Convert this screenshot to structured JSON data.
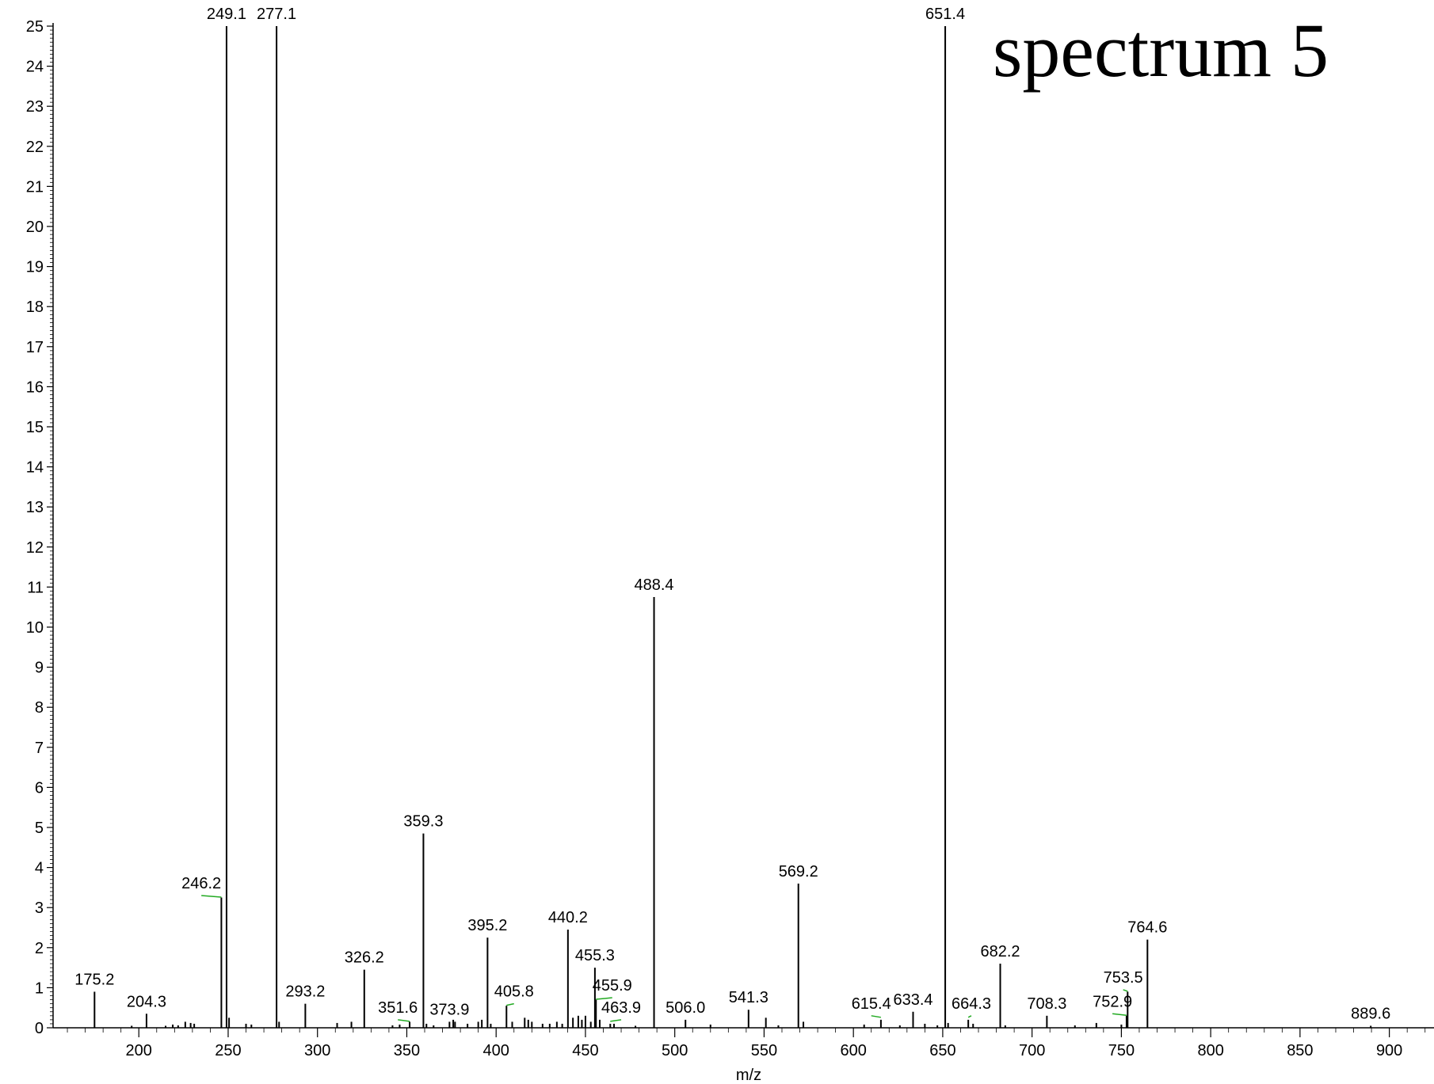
{
  "chart_data": {
    "type": "bar",
    "title": "spectrum 5",
    "xlabel": "m/z",
    "ylabel": "",
    "xlim": [
      152,
      925
    ],
    "ylim": [
      0,
      25
    ],
    "x_ticks": [
      200,
      250,
      300,
      350,
      400,
      450,
      500,
      550,
      600,
      650,
      700,
      750,
      800,
      850,
      900
    ],
    "y_ticks": [
      0,
      1,
      2,
      3,
      4,
      5,
      6,
      7,
      8,
      9,
      10,
      11,
      12,
      13,
      14,
      15,
      16,
      17,
      18,
      19,
      20,
      21,
      22,
      23,
      24,
      25
    ],
    "grid": false,
    "labeled_peaks": [
      {
        "mz": 175.2,
        "intensity": 0.9,
        "label": "175.2"
      },
      {
        "mz": 204.3,
        "intensity": 0.35,
        "label": "204.3"
      },
      {
        "mz": 246.2,
        "intensity": 3.25,
        "label": "246.2"
      },
      {
        "mz": 249.1,
        "intensity": 25.0,
        "label": "249.1"
      },
      {
        "mz": 277.1,
        "intensity": 25.0,
        "label": "277.1"
      },
      {
        "mz": 293.2,
        "intensity": 0.6,
        "label": "293.2"
      },
      {
        "mz": 326.2,
        "intensity": 1.45,
        "label": "326.2"
      },
      {
        "mz": 351.6,
        "intensity": 0.15,
        "label": "351.6"
      },
      {
        "mz": 359.3,
        "intensity": 4.85,
        "label": "359.3"
      },
      {
        "mz": 373.9,
        "intensity": 0.15,
        "label": "373.9"
      },
      {
        "mz": 395.2,
        "intensity": 2.25,
        "label": "395.2"
      },
      {
        "mz": 405.8,
        "intensity": 0.55,
        "label": "405.8"
      },
      {
        "mz": 440.2,
        "intensity": 2.45,
        "label": "440.2"
      },
      {
        "mz": 455.3,
        "intensity": 1.5,
        "label": "455.3"
      },
      {
        "mz": 455.9,
        "intensity": 0.7,
        "label": "455.9"
      },
      {
        "mz": 463.9,
        "intensity": 0.1,
        "label": "463.9"
      },
      {
        "mz": 488.4,
        "intensity": 10.75,
        "label": "488.4"
      },
      {
        "mz": 506.0,
        "intensity": 0.2,
        "label": "506.0"
      },
      {
        "mz": 541.3,
        "intensity": 0.45,
        "label": "541.3"
      },
      {
        "mz": 569.2,
        "intensity": 3.6,
        "label": "569.2"
      },
      {
        "mz": 615.4,
        "intensity": 0.2,
        "label": "615.4"
      },
      {
        "mz": 633.4,
        "intensity": 0.4,
        "label": "633.4"
      },
      {
        "mz": 651.4,
        "intensity": 25.0,
        "label": "651.4"
      },
      {
        "mz": 664.3,
        "intensity": 0.2,
        "label": "664.3"
      },
      {
        "mz": 682.2,
        "intensity": 1.6,
        "label": "682.2"
      },
      {
        "mz": 708.3,
        "intensity": 0.3,
        "label": "708.3"
      },
      {
        "mz": 752.9,
        "intensity": 0.3,
        "label": "752.9"
      },
      {
        "mz": 753.5,
        "intensity": 0.9,
        "label": "753.5"
      },
      {
        "mz": 764.6,
        "intensity": 2.2,
        "label": "764.6"
      },
      {
        "mz": 889.6,
        "intensity": 0.05,
        "label": "889.6"
      }
    ],
    "minor_peaks": [
      {
        "mz": 196,
        "intensity": 0.05
      },
      {
        "mz": 215,
        "intensity": 0.05
      },
      {
        "mz": 219,
        "intensity": 0.08
      },
      {
        "mz": 222,
        "intensity": 0.06
      },
      {
        "mz": 226,
        "intensity": 0.15
      },
      {
        "mz": 229,
        "intensity": 0.12
      },
      {
        "mz": 231,
        "intensity": 0.1
      },
      {
        "mz": 250.5,
        "intensity": 0.25
      },
      {
        "mz": 260,
        "intensity": 0.1
      },
      {
        "mz": 263,
        "intensity": 0.08
      },
      {
        "mz": 278.5,
        "intensity": 0.15
      },
      {
        "mz": 311,
        "intensity": 0.12
      },
      {
        "mz": 319,
        "intensity": 0.15
      },
      {
        "mz": 342,
        "intensity": 0.06
      },
      {
        "mz": 346,
        "intensity": 0.08
      },
      {
        "mz": 361,
        "intensity": 0.1
      },
      {
        "mz": 365,
        "intensity": 0.06
      },
      {
        "mz": 376,
        "intensity": 0.2
      },
      {
        "mz": 377,
        "intensity": 0.15
      },
      {
        "mz": 384,
        "intensity": 0.1
      },
      {
        "mz": 390,
        "intensity": 0.15
      },
      {
        "mz": 392,
        "intensity": 0.2
      },
      {
        "mz": 397,
        "intensity": 0.1
      },
      {
        "mz": 409,
        "intensity": 0.15
      },
      {
        "mz": 416,
        "intensity": 0.25
      },
      {
        "mz": 418,
        "intensity": 0.2
      },
      {
        "mz": 420,
        "intensity": 0.15
      },
      {
        "mz": 426,
        "intensity": 0.1
      },
      {
        "mz": 430,
        "intensity": 0.1
      },
      {
        "mz": 434,
        "intensity": 0.15
      },
      {
        "mz": 437,
        "intensity": 0.1
      },
      {
        "mz": 443,
        "intensity": 0.25
      },
      {
        "mz": 446,
        "intensity": 0.3
      },
      {
        "mz": 448,
        "intensity": 0.2
      },
      {
        "mz": 450,
        "intensity": 0.3
      },
      {
        "mz": 453,
        "intensity": 0.15
      },
      {
        "mz": 458,
        "intensity": 0.2
      },
      {
        "mz": 466,
        "intensity": 0.1
      },
      {
        "mz": 478,
        "intensity": 0.05
      },
      {
        "mz": 520,
        "intensity": 0.08
      },
      {
        "mz": 551,
        "intensity": 0.25
      },
      {
        "mz": 558,
        "intensity": 0.06
      },
      {
        "mz": 572,
        "intensity": 0.15
      },
      {
        "mz": 606,
        "intensity": 0.08
      },
      {
        "mz": 626,
        "intensity": 0.06
      },
      {
        "mz": 640,
        "intensity": 0.1
      },
      {
        "mz": 647,
        "intensity": 0.06
      },
      {
        "mz": 653,
        "intensity": 0.12
      },
      {
        "mz": 667,
        "intensity": 0.1
      },
      {
        "mz": 685,
        "intensity": 0.06
      },
      {
        "mz": 724,
        "intensity": 0.06
      },
      {
        "mz": 736,
        "intensity": 0.12
      },
      {
        "mz": 750,
        "intensity": 0.08
      }
    ],
    "label_leaders": [
      {
        "mz": 246.2,
        "label_mz": 235,
        "level": 3.3
      },
      {
        "mz": 351.6,
        "label_mz": 345,
        "level": 0.2
      },
      {
        "mz": 405.8,
        "label_mz": 410,
        "level": 0.6
      },
      {
        "mz": 455.9,
        "label_mz": 465,
        "level": 0.75
      },
      {
        "mz": 463.9,
        "label_mz": 470,
        "level": 0.2
      },
      {
        "mz": 615.4,
        "label_mz": 610,
        "level": 0.3
      },
      {
        "mz": 664.3,
        "label_mz": 666,
        "level": 0.3
      },
      {
        "mz": 752.9,
        "label_mz": 745,
        "level": 0.35
      },
      {
        "mz": 753.5,
        "label_mz": 751,
        "level": 0.95
      }
    ],
    "leader_color": "#22aa22",
    "peak_color": "#000000"
  }
}
